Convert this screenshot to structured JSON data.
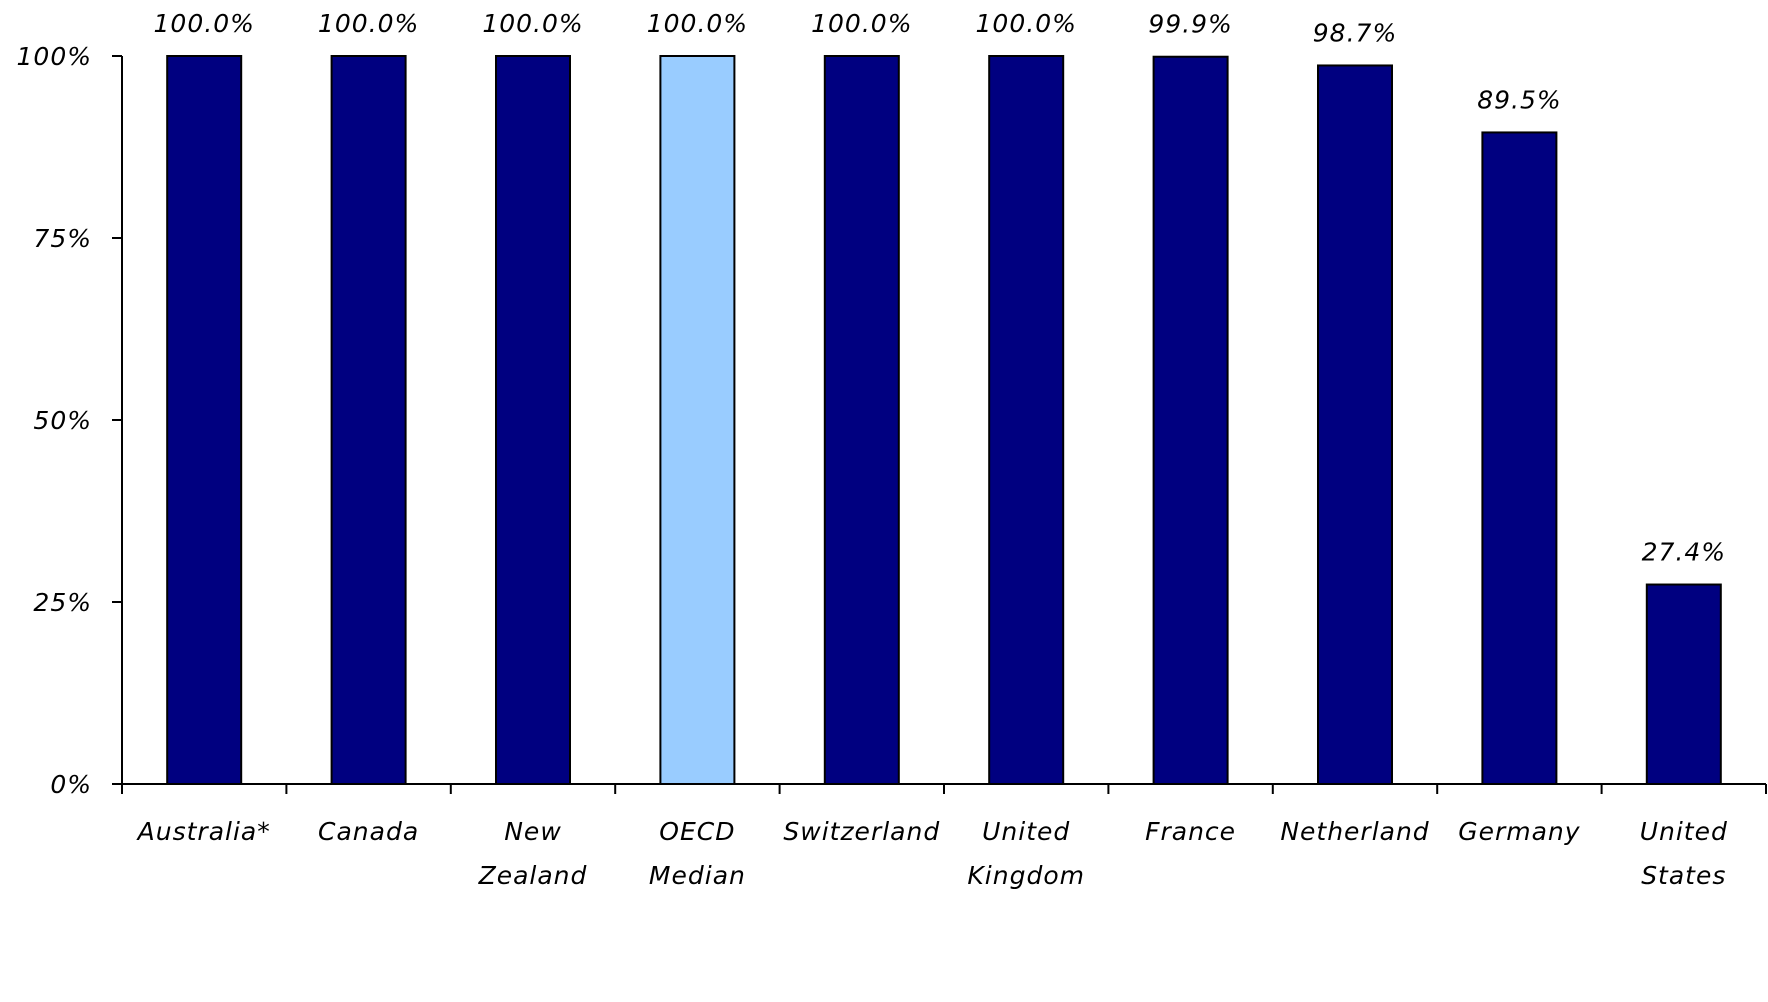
{
  "chart_data": {
    "type": "bar",
    "categories": [
      [
        "Australia*"
      ],
      [
        "Canada"
      ],
      [
        "New",
        "Zealand"
      ],
      [
        "OECD",
        "Median"
      ],
      [
        "Switzerland"
      ],
      [
        "United",
        "Kingdom"
      ],
      [
        "France"
      ],
      [
        "Netherland"
      ],
      [
        "Germany"
      ],
      [
        "United",
        "States"
      ]
    ],
    "values": [
      100.0,
      100.0,
      100.0,
      100.0,
      100.0,
      100.0,
      99.9,
      98.7,
      89.5,
      27.4
    ],
    "data_labels": [
      "100.0%",
      "100.0%",
      "100.0%",
      "100.0%",
      "100.0%",
      "100.0%",
      "99.9%",
      "98.7%",
      "89.5%",
      "27.4%"
    ],
    "highlight_index": 3,
    "colors": {
      "bar": "#000080",
      "highlight": "#99CCFF",
      "axis": "#000000"
    },
    "ylim": [
      0,
      100
    ],
    "yticks": [
      0,
      25,
      50,
      75,
      100
    ],
    "ytick_labels": [
      "0%",
      "25%",
      "50%",
      "75%",
      "100%"
    ],
    "title": "",
    "xlabel": "",
    "ylabel": "",
    "grid": false,
    "legend": "none"
  }
}
